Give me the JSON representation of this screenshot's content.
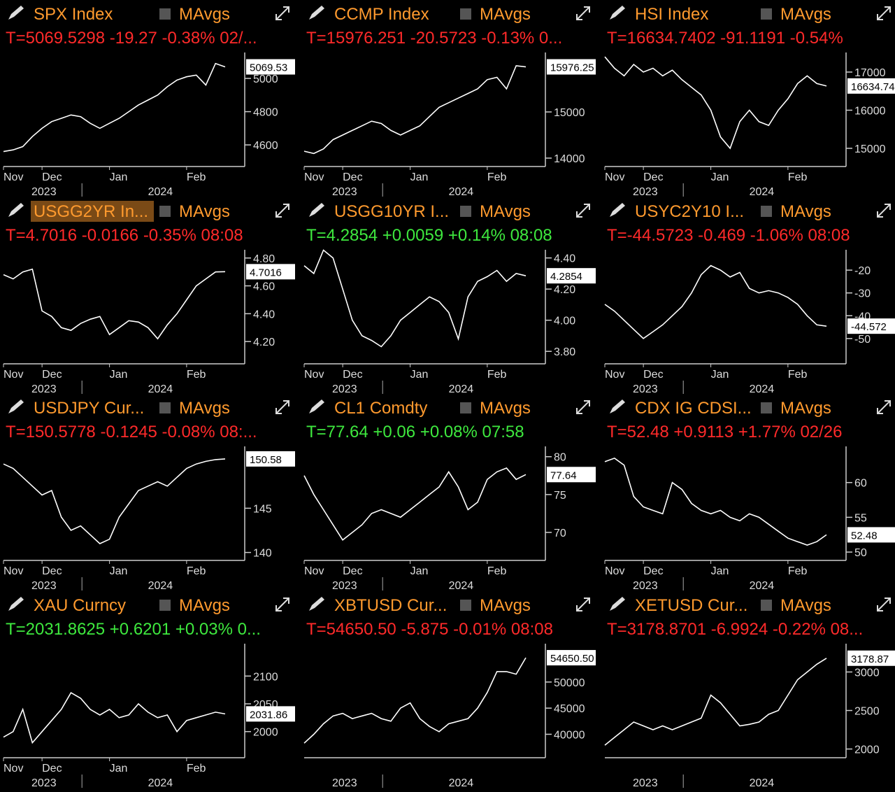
{
  "chart_data": [
    {
      "type": "line",
      "title": "SPX Index",
      "legend": "MAvgs",
      "quote": "T=5069.5298 -19.27 -0.38% 02/...",
      "quote_color": "#ff2a2a",
      "title_color": "#ff9a2e",
      "color": "#ffffff",
      "categories": [
        "Nov",
        null,
        null,
        null,
        "Dec",
        null,
        null,
        null,
        null,
        null,
        null,
        "Jan",
        null,
        null,
        null,
        null,
        null,
        null,
        null,
        "Feb",
        null,
        null,
        null,
        null
      ],
      "years": [
        "2023",
        "2024"
      ],
      "values": [
        4560,
        4570,
        4590,
        4650,
        4700,
        4740,
        4760,
        4780,
        4770,
        4730,
        4700,
        4730,
        4760,
        4800,
        4840,
        4870,
        4900,
        4950,
        4990,
        5010,
        5020,
        4960,
        5090,
        5069.53
      ],
      "ylim": [
        4470,
        5135
      ],
      "yticks": [
        4600,
        4800,
        5000
      ],
      "last_value": 5069.53
    },
    {
      "type": "line",
      "title": "CCMP Index",
      "legend": "MAvgs",
      "quote": "T=15976.251 -20.5723 -0.13% 0...",
      "quote_color": "#ff2a2a",
      "title_color": "#ff9a2e",
      "color": "#ffffff",
      "categories": [
        "Nov",
        null,
        null,
        null,
        "Dec",
        null,
        null,
        null,
        null,
        null,
        null,
        "Jan",
        null,
        null,
        null,
        null,
        null,
        null,
        null,
        "Feb",
        null,
        null,
        null,
        null
      ],
      "years": [
        "2023",
        "2024"
      ],
      "values": [
        14150,
        14100,
        14200,
        14400,
        14500,
        14600,
        14700,
        14800,
        14750,
        14600,
        14500,
        14600,
        14700,
        14900,
        15100,
        15200,
        15300,
        15400,
        15500,
        15700,
        15750,
        15500,
        16000,
        15976.25
      ],
      "ylim": [
        13818,
        16212
      ],
      "yticks": [
        14000,
        15000
      ],
      "last_value": 15976.25
    },
    {
      "type": "line",
      "title": "HSI Index",
      "legend": "MAvgs",
      "quote": "T=16634.7402 -91.1191 -0.54%",
      "quote_color": "#ff2a2a",
      "title_color": "#ff9a2e",
      "color": "#ffffff",
      "categories": [
        "Nov",
        null,
        null,
        null,
        "Dec",
        null,
        null,
        null,
        null,
        null,
        null,
        "Jan",
        null,
        null,
        null,
        null,
        null,
        null,
        null,
        "Feb",
        null,
        null,
        null,
        null
      ],
      "years": [
        "2023",
        "2024"
      ],
      "values": [
        17400,
        17100,
        16900,
        17200,
        17000,
        17100,
        16900,
        17050,
        16800,
        16600,
        16400,
        16000,
        15300,
        15000,
        15700,
        16000,
        15700,
        15600,
        16000,
        16300,
        16700,
        16900,
        16700,
        16634.74
      ],
      "ylim": [
        14523,
        17422
      ],
      "yticks": [
        15000,
        16000,
        17000
      ],
      "last_value": 16634.74
    },
    {
      "type": "line",
      "title": "USGG2YR In...",
      "title_highlight": true,
      "legend": "MAvgs",
      "quote": "T=4.7016 -0.0166 -0.35% 08:08",
      "quote_color": "#ff2a2a",
      "title_color": "#ff9a2e",
      "color": "#ffffff",
      "categories": [
        "Nov",
        null,
        null,
        null,
        "Dec",
        null,
        null,
        null,
        null,
        null,
        null,
        "Jan",
        null,
        null,
        null,
        null,
        null,
        null,
        null,
        "Feb",
        null,
        null,
        null,
        null
      ],
      "years": [
        "2023",
        "2024"
      ],
      "values": [
        4.68,
        4.65,
        4.7,
        4.72,
        4.42,
        4.38,
        4.3,
        4.28,
        4.33,
        4.36,
        4.38,
        4.25,
        4.3,
        4.35,
        4.34,
        4.3,
        4.22,
        4.32,
        4.4,
        4.5,
        4.6,
        4.65,
        4.7,
        4.7016
      ],
      "ylim": [
        4.04,
        4.834
      ],
      "yticks": [
        {
          "value": 4.2,
          "label": "4.20"
        },
        {
          "value": 4.4,
          "label": "4.40"
        },
        {
          "value": 4.6,
          "label": "4.60"
        },
        {
          "value": 4.8,
          "label": "4.80"
        }
      ],
      "last_value": 4.7016
    },
    {
      "type": "line",
      "title": "USGG10YR I...",
      "legend": "MAvgs",
      "quote": "T=4.2854 +0.0059 +0.14% 08:08",
      "quote_color": "#3ee83e",
      "title_color": "#ff9a2e",
      "color": "#ffffff",
      "categories": [
        "Nov",
        null,
        null,
        null,
        "Dec",
        null,
        null,
        null,
        null,
        null,
        null,
        "Jan",
        null,
        null,
        null,
        null,
        null,
        null,
        null,
        "Feb",
        null,
        null,
        null,
        null
      ],
      "years": [
        "2023",
        "2024"
      ],
      "values": [
        4.35,
        4.3,
        4.45,
        4.4,
        4.2,
        4.0,
        3.9,
        3.87,
        3.83,
        3.9,
        4.0,
        4.05,
        4.1,
        4.15,
        4.12,
        4.05,
        3.88,
        4.15,
        4.25,
        4.28,
        4.32,
        4.25,
        4.3,
        4.2854
      ],
      "ylim": [
        3.72,
        4.43
      ],
      "yticks": [
        {
          "value": 3.8,
          "label": "3.80"
        },
        {
          "value": 4,
          "label": "4.00"
        },
        {
          "value": 4.2,
          "label": "4.20"
        },
        {
          "value": 4.4,
          "label": "4.40"
        }
      ],
      "last_value": 4.2854
    },
    {
      "type": "line",
      "title": "USYC2Y10 I...",
      "legend": "MAvgs",
      "quote": "T=-44.5723 -0.469 -1.06% 08:08",
      "quote_color": "#ff2a2a",
      "title_color": "#ff9a2e",
      "color": "#ffffff",
      "categories": [
        "Nov",
        null,
        null,
        null,
        "Dec",
        null,
        null,
        null,
        null,
        null,
        null,
        "Jan",
        null,
        null,
        null,
        null,
        null,
        null,
        null,
        "Feb",
        null,
        null,
        null,
        null
      ],
      "years": [
        "2023",
        "2024"
      ],
      "values": [
        -35,
        -38,
        -42,
        -46,
        -50,
        -47,
        -44,
        -40,
        -36,
        -30,
        -22,
        -18,
        -20,
        -23,
        -21,
        -28,
        -30,
        -29,
        -30,
        -32,
        -35,
        -40,
        -44,
        -44.572
      ],
      "ylim": [
        -61.1,
        -12.6
      ],
      "yticks": [
        -50,
        -40,
        -30,
        -20
      ],
      "last_value": -44.572
    },
    {
      "type": "line",
      "title": "USDJPY Cur...",
      "legend": "MAvgs",
      "quote": "T=150.5778 -0.1245 -0.08% 08:...",
      "quote_color": "#ff2a2a",
      "title_color": "#ff9a2e",
      "color": "#ffffff",
      "categories": [
        "Nov",
        null,
        null,
        null,
        "Dec",
        null,
        null,
        null,
        null,
        null,
        null,
        "Jan",
        null,
        null,
        null,
        null,
        null,
        null,
        null,
        "Feb",
        null,
        null,
        null,
        null
      ],
      "years": [
        "2023",
        "2024"
      ],
      "values": [
        150,
        149.5,
        148.5,
        147.5,
        146.5,
        147,
        144,
        142.5,
        143,
        142,
        141,
        141.5,
        144,
        145.5,
        147,
        147.5,
        148,
        147.5,
        148.5,
        149.5,
        150,
        150.3,
        150.5,
        150.58
      ],
      "ylim": [
        139.1,
        151.6
      ],
      "yticks": [
        140,
        145
      ],
      "last_value": 150.58
    },
    {
      "type": "line",
      "title": "CL1 Comdty",
      "legend": "MAvgs",
      "quote": "T=77.64 +0.06 +0.08% 07:58",
      "quote_color": "#3ee83e",
      "title_color": "#ff9a2e",
      "color": "#ffffff",
      "categories": [
        "Nov",
        null,
        null,
        null,
        "Dec",
        null,
        null,
        null,
        null,
        null,
        null,
        "Jan",
        null,
        null,
        null,
        null,
        null,
        null,
        null,
        "Feb",
        null,
        null,
        null,
        null
      ],
      "years": [
        "2023",
        "2024"
      ],
      "values": [
        77.5,
        75,
        73,
        71,
        69,
        70,
        71,
        72.5,
        73,
        72.5,
        72,
        73,
        74,
        75,
        76,
        78,
        76,
        73,
        74,
        77,
        78,
        78.5,
        77,
        77.64
      ],
      "ylim": [
        66.3,
        80.9
      ],
      "yticks": [
        70,
        75,
        80
      ],
      "last_value": 77.64
    },
    {
      "type": "line",
      "title": "CDX IG CDSI...",
      "legend": "MAvgs",
      "quote": "T=52.48 +0.9113 +1.77% 02/26",
      "quote_color": "#ff2a2a",
      "title_color": "#ff9a2e",
      "color": "#ffffff",
      "categories": [
        "Nov",
        null,
        null,
        null,
        "Dec",
        null,
        null,
        null,
        null,
        null,
        null,
        "Jan",
        null,
        null,
        null,
        null,
        null,
        null,
        null,
        "Feb",
        null,
        null,
        null,
        null
      ],
      "years": [
        "2023",
        "2024"
      ],
      "values": [
        63,
        63.5,
        62.5,
        58,
        56.5,
        56,
        55.5,
        60,
        59,
        57,
        56,
        55.5,
        56,
        55,
        54.5,
        55.5,
        55,
        54,
        53,
        52,
        51.5,
        51,
        51.5,
        52.48
      ],
      "ylim": [
        48.8,
        64.7
      ],
      "yticks": [
        50,
        55,
        60
      ],
      "last_value": 52.48
    },
    {
      "type": "line",
      "title": "XAU Curncy",
      "legend": "MAvgs",
      "quote": "T=2031.8625 +0.6201 +0.03% 0...",
      "quote_color": "#3ee83e",
      "title_color": "#ff9a2e",
      "color": "#ffffff",
      "categories": [
        "Nov",
        null,
        null,
        null,
        "Dec",
        null,
        null,
        null,
        null,
        null,
        null,
        "Jan",
        null,
        null,
        null,
        null,
        null,
        null,
        null,
        "Feb",
        null,
        null,
        null,
        null
      ],
      "years": [
        "2023",
        "2024"
      ],
      "values": [
        1990,
        2000,
        2040,
        1980,
        2000,
        2020,
        2040,
        2070,
        2060,
        2040,
        2030,
        2040,
        2025,
        2030,
        2050,
        2035,
        2025,
        2030,
        2000,
        2020,
        2025,
        2030,
        2035,
        2031.86
      ],
      "ylim": [
        1953,
        2152
      ],
      "yticks": [
        2000,
        2050,
        2100
      ],
      "last_value": 2031.86
    },
    {
      "type": "line",
      "title": "XBTUSD Cur...",
      "legend": "MAvgs",
      "quote": "T=54650.50 -5.875 -0.01% 08:08",
      "quote_color": "#ff2a2a",
      "title_color": "#ff9a2e",
      "color": "#ffffff",
      "categories": [
        null,
        null,
        null,
        null,
        null,
        null,
        null,
        null,
        null,
        null,
        null,
        null,
        null,
        null,
        null,
        null,
        null,
        null,
        null,
        null,
        null,
        null,
        null,
        null
      ],
      "years": [
        "2023",
        "2024"
      ],
      "values": [
        38300,
        40000,
        42000,
        43500,
        44000,
        43000,
        43500,
        44000,
        43000,
        42500,
        45000,
        46000,
        43000,
        41500,
        40500,
        42000,
        42500,
        43000,
        45000,
        48000,
        52000,
        52000,
        51500,
        54650.5
      ],
      "ylim": [
        35513,
        56667
      ],
      "yticks": [
        40000,
        45000,
        50000
      ],
      "last_value": {
        "value": 54650.5,
        "label": "54650.50"
      }
    },
    {
      "type": "line",
      "title": "XETUSD Cur...",
      "legend": "MAvgs",
      "quote": "T=3178.8701 -6.9924 -0.22% 08...",
      "quote_color": "#ff2a2a",
      "title_color": "#ff9a2e",
      "color": "#ffffff",
      "categories": [
        null,
        null,
        null,
        null,
        null,
        null,
        null,
        null,
        null,
        null,
        null,
        null,
        null,
        null,
        null,
        null,
        null,
        null,
        null,
        null,
        null,
        null,
        null,
        null
      ],
      "years": [
        "2023",
        "2024"
      ],
      "values": [
        2050,
        2150,
        2250,
        2350,
        2300,
        2250,
        2300,
        2250,
        2300,
        2350,
        2400,
        2700,
        2600,
        2450,
        2300,
        2320,
        2350,
        2450,
        2500,
        2700,
        2900,
        3000,
        3100,
        3178.87
      ],
      "ylim": [
        1887,
        3322
      ],
      "yticks": [
        2000,
        2500,
        3000
      ],
      "last_value": 3178.87
    }
  ]
}
